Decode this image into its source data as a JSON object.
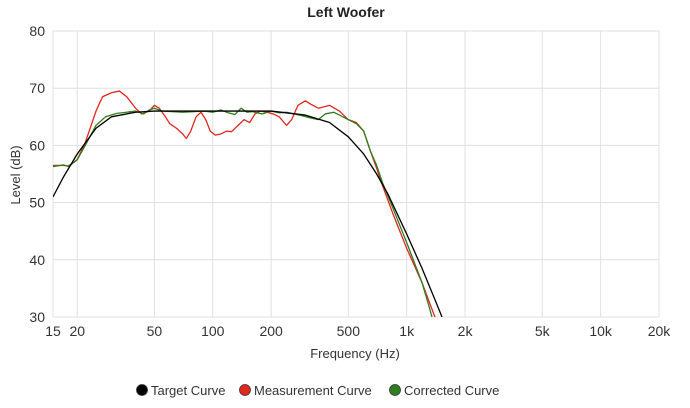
{
  "chart_data": {
    "type": "line",
    "title": "Left Woofer",
    "xlabel": "Frequency (Hz)",
    "ylabel": "Level (dB)",
    "x_scale": "log",
    "xlim": [
      15,
      20000
    ],
    "ylim": [
      30,
      80
    ],
    "grid": true,
    "legend_position": "bottom-center",
    "x_ticks": [
      {
        "value": 15,
        "label": "15"
      },
      {
        "value": 20,
        "label": "20"
      },
      {
        "value": 50,
        "label": "50"
      },
      {
        "value": 100,
        "label": "100"
      },
      {
        "value": 200,
        "label": "200"
      },
      {
        "value": 500,
        "label": "500"
      },
      {
        "value": 1000,
        "label": "1k"
      },
      {
        "value": 2000,
        "label": "2k"
      },
      {
        "value": 5000,
        "label": "5k"
      },
      {
        "value": 10000,
        "label": "10k"
      },
      {
        "value": 20000,
        "label": "20k"
      }
    ],
    "y_ticks": [
      {
        "value": 30,
        "label": "30"
      },
      {
        "value": 40,
        "label": "40"
      },
      {
        "value": 50,
        "label": "50"
      },
      {
        "value": 60,
        "label": "60"
      },
      {
        "value": 70,
        "label": "70"
      },
      {
        "value": 80,
        "label": "80"
      }
    ],
    "series": [
      {
        "name": "Target Curve",
        "color": "#000000",
        "points": [
          [
            15,
            51
          ],
          [
            17,
            54.5
          ],
          [
            20,
            58.5
          ],
          [
            25,
            63
          ],
          [
            30,
            65
          ],
          [
            40,
            65.8
          ],
          [
            50,
            66
          ],
          [
            100,
            66
          ],
          [
            200,
            66
          ],
          [
            300,
            65.3
          ],
          [
            400,
            64
          ],
          [
            500,
            61.5
          ],
          [
            600,
            58.5
          ],
          [
            700,
            55
          ],
          [
            800,
            51.5
          ],
          [
            1000,
            44.5
          ],
          [
            1200,
            38.5
          ],
          [
            1400,
            33
          ],
          [
            1500,
            30.5
          ],
          [
            1520,
            30
          ]
        ]
      },
      {
        "name": "Measurement Curve",
        "color": "#e3261e",
        "points": [
          [
            15,
            56.5
          ],
          [
            17,
            56.5
          ],
          [
            18,
            56.4
          ],
          [
            20,
            57.5
          ],
          [
            22,
            60.5
          ],
          [
            25,
            66
          ],
          [
            27,
            68.5
          ],
          [
            30,
            69.2
          ],
          [
            33,
            69.5
          ],
          [
            36,
            68.5
          ],
          [
            40,
            66.5
          ],
          [
            43,
            65.5
          ],
          [
            47,
            66
          ],
          [
            50,
            67
          ],
          [
            53,
            66.5
          ],
          [
            57,
            65
          ],
          [
            60,
            63.8
          ],
          [
            65,
            63
          ],
          [
            70,
            62
          ],
          [
            73,
            61.2
          ],
          [
            77,
            62.5
          ],
          [
            82,
            65
          ],
          [
            87,
            65.8
          ],
          [
            92,
            64.5
          ],
          [
            97,
            62.5
          ],
          [
            103,
            61.8
          ],
          [
            110,
            62
          ],
          [
            118,
            62.5
          ],
          [
            125,
            62.4
          ],
          [
            135,
            63.5
          ],
          [
            145,
            64.5
          ],
          [
            155,
            64
          ],
          [
            165,
            65.5
          ],
          [
            175,
            66
          ],
          [
            190,
            65.8
          ],
          [
            205,
            65.5
          ],
          [
            220,
            65
          ],
          [
            240,
            63.5
          ],
          [
            255,
            64.5
          ],
          [
            275,
            67
          ],
          [
            300,
            67.8
          ],
          [
            320,
            67.2
          ],
          [
            350,
            66.5
          ],
          [
            400,
            67
          ],
          [
            450,
            66
          ],
          [
            500,
            64.5
          ],
          [
            550,
            64
          ],
          [
            600,
            62.5
          ],
          [
            650,
            59
          ],
          [
            700,
            56
          ],
          [
            750,
            53
          ],
          [
            850,
            48
          ],
          [
            1000,
            42
          ],
          [
            1200,
            36
          ],
          [
            1380,
            30.5
          ],
          [
            1400,
            30
          ]
        ]
      },
      {
        "name": "Corrected Curve",
        "color": "#2f7d1d",
        "points": [
          [
            15,
            56.3
          ],
          [
            17,
            56.6
          ],
          [
            18,
            56.3
          ],
          [
            20,
            57.5
          ],
          [
            22,
            60
          ],
          [
            25,
            63.5
          ],
          [
            28,
            65
          ],
          [
            32,
            65.6
          ],
          [
            36,
            65.8
          ],
          [
            40,
            66
          ],
          [
            44,
            65.5
          ],
          [
            47,
            66.2
          ],
          [
            50,
            66.5
          ],
          [
            55,
            66
          ],
          [
            70,
            65.8
          ],
          [
            90,
            66
          ],
          [
            100,
            65.8
          ],
          [
            110,
            66.2
          ],
          [
            120,
            65.7
          ],
          [
            130,
            65.4
          ],
          [
            140,
            66.5
          ],
          [
            150,
            65.8
          ],
          [
            160,
            65.9
          ],
          [
            180,
            65.5
          ],
          [
            200,
            66
          ],
          [
            220,
            65.7
          ],
          [
            240,
            65.8
          ],
          [
            280,
            65.3
          ],
          [
            320,
            64.8
          ],
          [
            350,
            64.5
          ],
          [
            380,
            65.5
          ],
          [
            420,
            65.8
          ],
          [
            450,
            65.3
          ],
          [
            500,
            64.5
          ],
          [
            550,
            63.8
          ],
          [
            600,
            62.5
          ],
          [
            650,
            59
          ],
          [
            700,
            56.5
          ],
          [
            750,
            53.5
          ],
          [
            850,
            49
          ],
          [
            1000,
            43
          ],
          [
            1200,
            36
          ],
          [
            1300,
            32
          ],
          [
            1350,
            30
          ]
        ]
      }
    ]
  }
}
